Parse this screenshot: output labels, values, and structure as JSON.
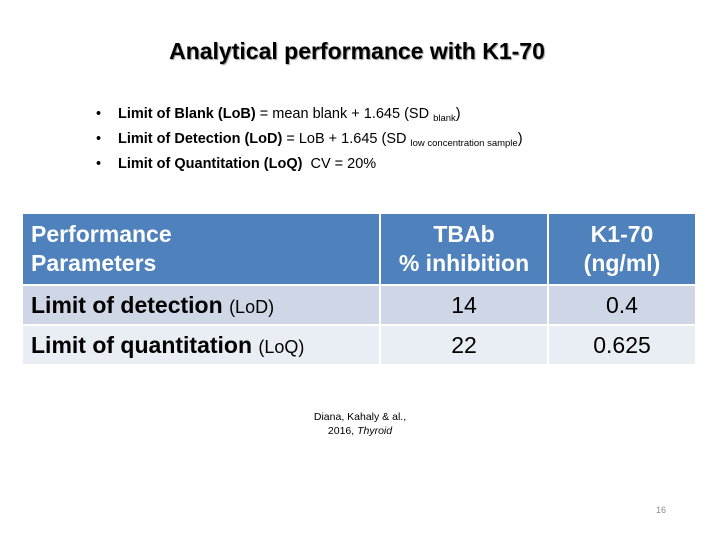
{
  "title": "Analytical performance with K1-70",
  "bullets": [
    {
      "bold": "Limit of Blank (LoB)",
      "text": " = mean blank + 1.645 (SD ",
      "subscript": "blank",
      "close": ")"
    },
    {
      "bold": "Limit of Detection (LoD)",
      "text": " = LoB + 1.645 (SD ",
      "subscript": "low concentration sample",
      "close": ")"
    },
    {
      "bold": "Limit of Quantitation (LoQ)",
      "text": "  CV = 20%",
      "subscript": "",
      "close": ""
    }
  ],
  "table": {
    "headers": [
      {
        "line1": "Performance",
        "line2": "Parameters"
      },
      {
        "line1": "TBAb",
        "line2": "% inhibition"
      },
      {
        "line1": "K1-70",
        "line2": "(ng/ml)"
      }
    ],
    "rows": [
      {
        "name": "Limit of detection",
        "abbr": "(LoD)",
        "tbab": "14",
        "k170": "0.4"
      },
      {
        "name": "Limit of quantitation",
        "abbr": "(LoQ)",
        "tbab": "22",
        "k170": "0.625"
      }
    ],
    "colors": {
      "header_bg": "#4f81bd",
      "row_odd": "#cfd7e6",
      "row_even": "#e9edf4"
    }
  },
  "citation": {
    "line1": "Diana, Kahaly & al.,",
    "line2_prefix": "2016, ",
    "journal": "Thyroid"
  },
  "page_number": "16"
}
